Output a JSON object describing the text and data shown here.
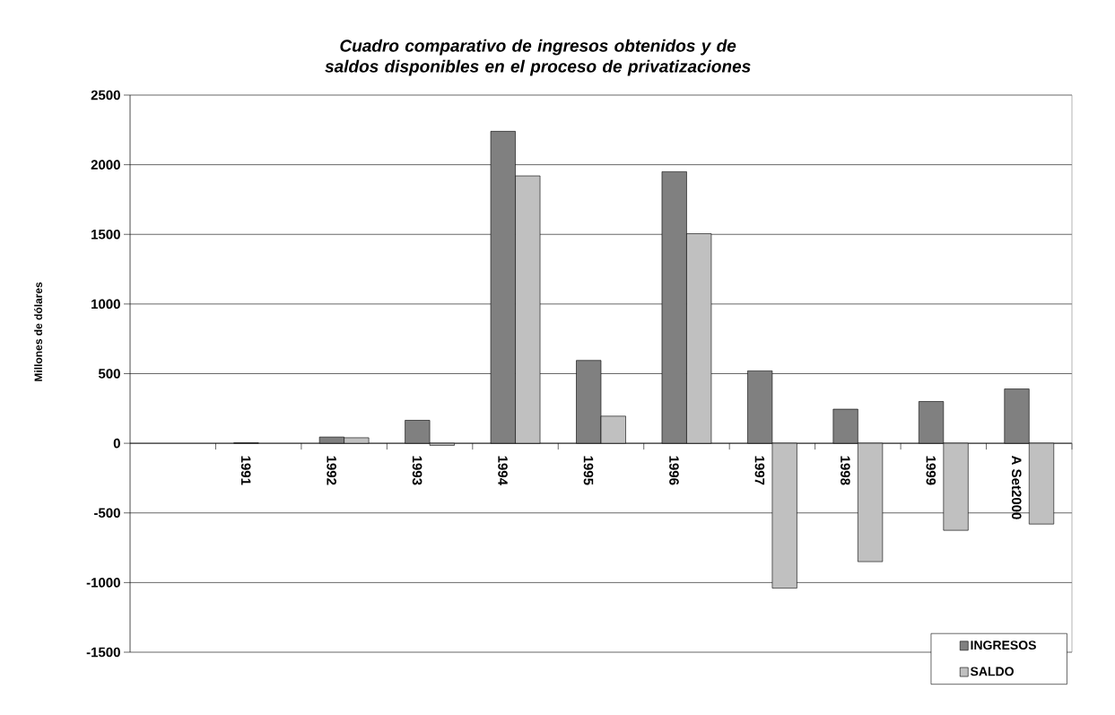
{
  "chart_data": {
    "type": "bar",
    "title": "Cuadro comparativo de ingresos obtenidos y de saldos disponibles en el proceso de privatizaciones",
    "ylabel": "Millones de dólares",
    "categories": [
      null,
      "1991",
      "1992",
      "1993",
      "1994",
      "1995",
      "1996",
      "1997",
      "1998",
      "1999",
      "A Set2000"
    ],
    "series": [
      {
        "name": "INGRESOS",
        "color": "#808080",
        "values": [
          null,
          3,
          45,
          165,
          2240,
          595,
          1950,
          520,
          245,
          300,
          390
        ]
      },
      {
        "name": "SALDO",
        "color": "#c0c0c0",
        "values": [
          null,
          null,
          40,
          -15,
          1920,
          195,
          1505,
          -1040,
          -850,
          -625,
          -580
        ]
      }
    ],
    "ylim": [
      -1500,
      2500
    ],
    "yticks": [
      -1500,
      -1000,
      -500,
      0,
      500,
      1000,
      1500,
      2000,
      2500
    ],
    "grid": "y",
    "legend": "bottom right"
  }
}
